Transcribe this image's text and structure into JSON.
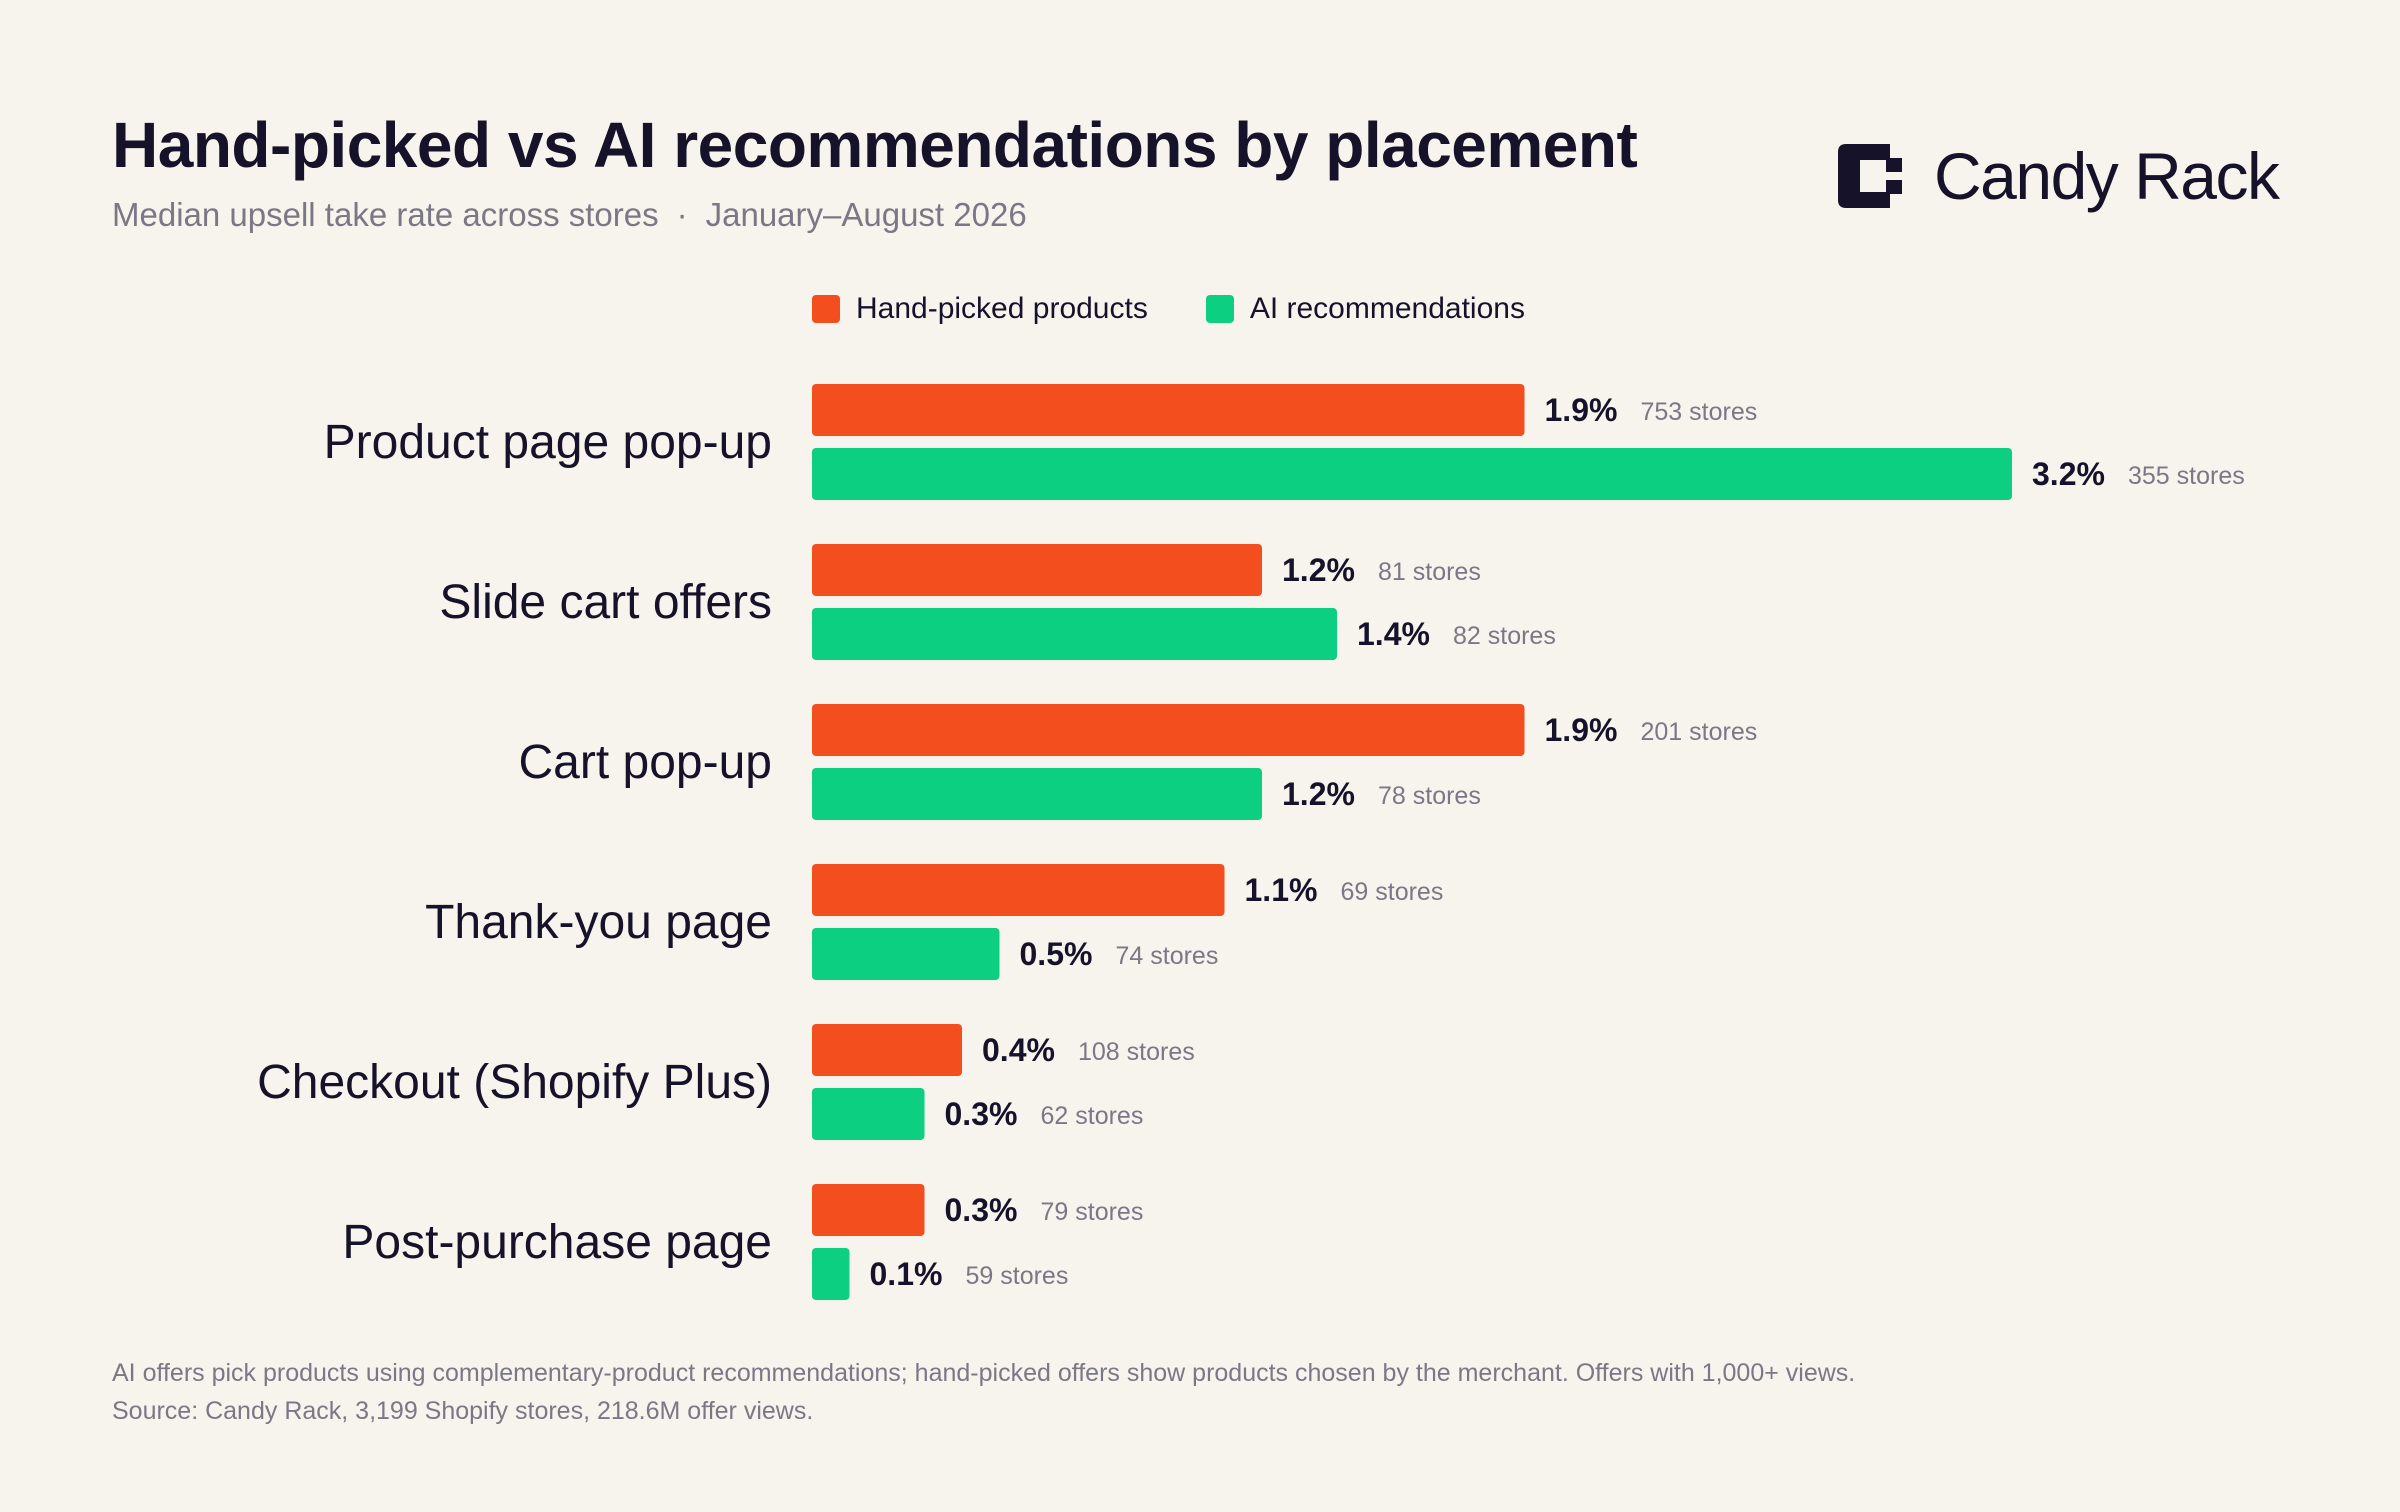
{
  "title": "Hand-picked vs AI recommendations by placement",
  "subtitle": {
    "metric": "Median upsell take rate across stores",
    "separator": "·",
    "period": "January–August 2026"
  },
  "brand": {
    "name": "Candy Rack",
    "logo_icon": "candy-rack-logo-icon"
  },
  "colors": {
    "background": "#f7f4ee",
    "hand_picked": "#f24e1e",
    "ai": "#0dcf82",
    "text_dark": "#15122a",
    "text_muted": "#7b7885"
  },
  "chart_data": {
    "type": "bar",
    "orientation": "horizontal",
    "grid": false,
    "legend_position": "top",
    "x_unit": "%",
    "categories": [
      "Product page pop-up",
      "Slide cart offers",
      "Cart pop-up",
      "Thank-you page",
      "Checkout (Shopify Plus)",
      "Post-purchase page"
    ],
    "series": [
      {
        "name": "Hand-picked products",
        "color": "#f24e1e",
        "values": [
          1.9,
          1.2,
          1.9,
          1.1,
          0.4,
          0.3
        ],
        "value_labels": [
          "1.9%",
          "1.2%",
          "1.9%",
          "1.1%",
          "0.4%",
          "0.3%"
        ],
        "store_labels": [
          "753 stores",
          "81 stores",
          "201 stores",
          "69 stores",
          "108 stores",
          "79 stores"
        ]
      },
      {
        "name": "AI recommendations",
        "color": "#0dcf82",
        "values": [
          3.2,
          1.4,
          1.2,
          0.5,
          0.3,
          0.1
        ],
        "value_labels": [
          "3.2%",
          "1.4%",
          "1.2%",
          "0.5%",
          "0.3%",
          "0.1%"
        ],
        "store_labels": [
          "355 stores",
          "82 stores",
          "78 stores",
          "74 stores",
          "62 stores",
          "59 stores"
        ]
      }
    ]
  },
  "footnote": {
    "line1": "AI offers pick products using complementary-product recommendations; hand-picked offers show products chosen by the merchant. Offers with 1,000+ views.",
    "line2": "Source: Candy Rack, 3,199 Shopify stores, 218.6M offer views."
  }
}
